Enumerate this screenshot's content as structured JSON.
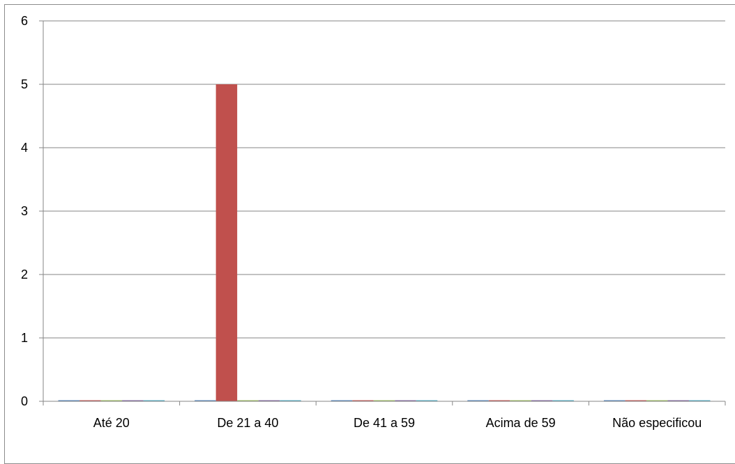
{
  "chart_data": {
    "type": "bar",
    "categories": [
      "Até 20",
      "De 21 a 40",
      "De 41 a 59",
      "Acima de 59",
      "Não especificou"
    ],
    "series": [
      {
        "values": [
          0,
          0,
          0,
          0,
          0
        ],
        "color": "#4f81bd"
      },
      {
        "values": [
          0,
          5,
          0,
          0,
          0
        ],
        "color": "#c0504d"
      },
      {
        "values": [
          0,
          0,
          0,
          0,
          0
        ],
        "color": "#9bbb59"
      },
      {
        "values": [
          0,
          0,
          0,
          0,
          0
        ],
        "color": "#8064a2"
      },
      {
        "values": [
          0,
          0,
          0,
          0,
          0
        ],
        "color": "#4bacc6"
      }
    ],
    "ylim": [
      0,
      6
    ],
    "yticks": [
      "0",
      "1",
      "2",
      "3",
      "4",
      "5",
      "6"
    ],
    "grid": true,
    "legend": "none",
    "title": "",
    "xlabel": "",
    "ylabel": ""
  }
}
